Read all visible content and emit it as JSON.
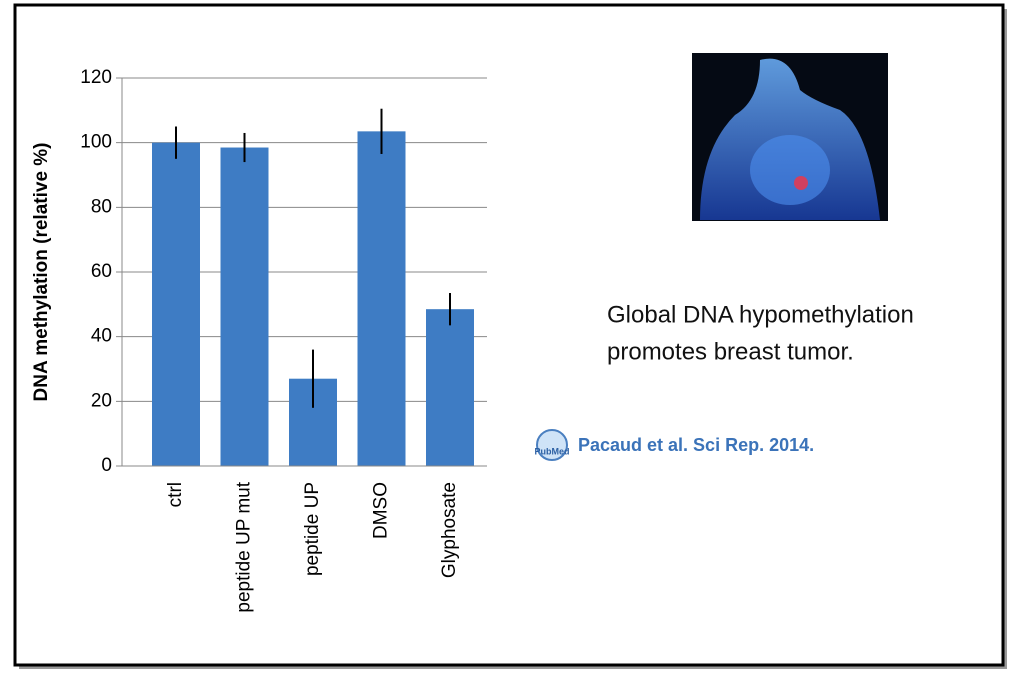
{
  "chart_data": {
    "type": "bar",
    "y_label": "DNA methylation (relative %)",
    "categories": [
      "ctrl",
      "peptide UP mut",
      "peptide UP",
      "DMSO",
      "Glyphosate"
    ],
    "values": [
      100,
      98.5,
      27,
      103.5,
      48.5
    ],
    "errors": [
      5,
      4.5,
      9,
      7,
      5
    ],
    "color": "#3e7cc4",
    "ylim": [
      0,
      120
    ],
    "yticks": [
      0,
      20,
      40,
      60,
      80,
      100,
      120
    ],
    "grid": true,
    "annotation_lines": [
      "Global DNA hypomethylation",
      "promotes breast tumor."
    ],
    "citation": "Pacaud et al. Sci Rep. 2014.",
    "citation_icon": "PubMed"
  }
}
